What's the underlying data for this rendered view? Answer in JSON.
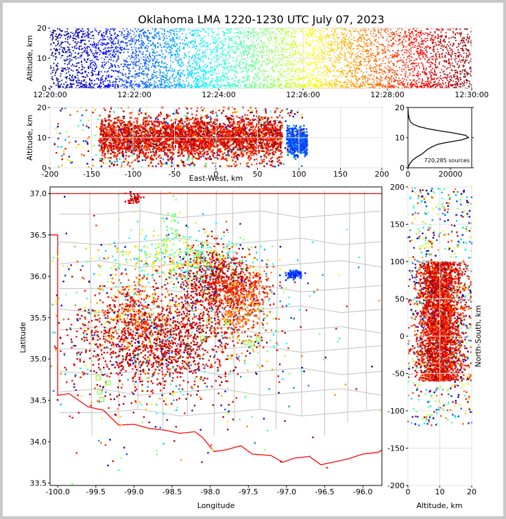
{
  "title": "Oklahoma LMA 1220-1230 UTC July 07, 2023",
  "colors": {
    "frame": "#c8c8c8",
    "state_border": "#ff0000",
    "county_border": "#c0c0c0",
    "grid": "#e6e6e6",
    "histogram_line": "#000000"
  },
  "colormap": "jet (time-colored sources)",
  "chart_data": [
    {
      "id": "time-height",
      "type": "scatter",
      "xlabel": "",
      "ylabel": "Altitude, km",
      "xlim": [
        "12:20:00",
        "12:30:00"
      ],
      "ylim": [
        0,
        20
      ],
      "xticks": [
        "12:20:00",
        "12:22:00",
        "12:24:00",
        "12:26:00",
        "12:28:00",
        "12:30:00"
      ],
      "yticks": [
        "0",
        "10",
        "20"
      ],
      "color_by": "time",
      "grid": true
    },
    {
      "id": "ew-height",
      "type": "scatter",
      "xlabel": "East-West, km",
      "ylabel": "Altitude, km",
      "xlim": [
        -200,
        200
      ],
      "ylim": [
        0,
        20
      ],
      "xticks": [
        "-200",
        "-150",
        "-100",
        "-50",
        "0",
        "50",
        "100",
        "150",
        "200"
      ],
      "yticks": [
        "0",
        "10",
        "20"
      ],
      "color_by": "time",
      "grid": true
    },
    {
      "id": "altitude-histogram",
      "type": "line",
      "xlim": [
        0,
        30000
      ],
      "ylim": [
        0,
        20
      ],
      "xticks": [
        "0",
        "20000"
      ],
      "yticks": [
        "0",
        "10",
        "20"
      ],
      "annotation": "720,285 sources",
      "x": [
        0,
        300,
        1000,
        2200,
        4000,
        6500,
        9000,
        11500,
        14000,
        19000,
        25000,
        28500,
        27000,
        21000,
        14500,
        9000,
        5000,
        2600,
        1200,
        500,
        150,
        0
      ],
      "y": [
        0.0,
        0.5,
        1.5,
        2.5,
        3.5,
        4.5,
        6.0,
        7.0,
        7.8,
        8.5,
        9.2,
        10.0,
        10.8,
        11.6,
        12.3,
        13.0,
        13.7,
        14.4,
        15.2,
        16.5,
        18.0,
        20.0
      ]
    },
    {
      "id": "plan-view",
      "type": "scatter",
      "xlabel": "Longitude",
      "ylabel": "Latitude",
      "xlim": [
        -100.1,
        -95.75
      ],
      "ylim": [
        33.47,
        37.08
      ],
      "xticks": [
        "-100.0",
        "-99.5",
        "-99.0",
        "-98.5",
        "-98.0",
        "-97.5",
        "-97.0",
        "-96.5",
        "-96.0"
      ],
      "yticks": [
        "33.5",
        "34.0",
        "34.5",
        "35.0",
        "35.5",
        "36.0",
        "36.5",
        "37.0"
      ],
      "color_by": "time",
      "grid": true,
      "station_markers": [
        [
          -99.47,
          34.77
        ],
        [
          -99.45,
          34.6
        ],
        [
          -99.42,
          34.51
        ],
        [
          -99.34,
          34.71
        ],
        [
          -98.02,
          35.47
        ],
        [
          -97.78,
          35.44
        ],
        [
          -97.53,
          35.2
        ],
        [
          -97.45,
          35.18
        ],
        [
          -97.37,
          35.24
        ],
        [
          -98.1,
          35.25
        ]
      ]
    },
    {
      "id": "ns-height",
      "type": "scatter",
      "xlabel": "Altitude, km",
      "ylabel": "North-South, km",
      "xlim": [
        0,
        20
      ],
      "ylim": [
        -200,
        200
      ],
      "xticks": [
        "0",
        "10",
        "20"
      ],
      "yticks": [
        "-200",
        "-150",
        "-100",
        "-50",
        "0",
        "50",
        "100",
        "150",
        "200"
      ],
      "color_by": "time",
      "grid": true
    }
  ]
}
